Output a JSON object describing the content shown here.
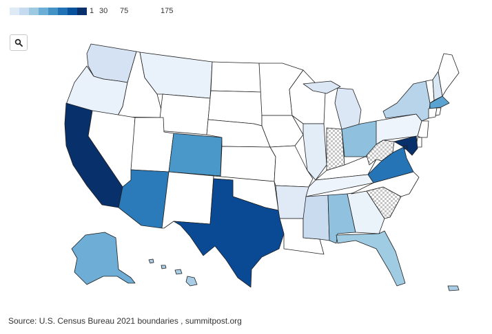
{
  "legend": {
    "ticks": [
      {
        "label": "1"
      },
      {
        "label": "30"
      },
      {
        "label": "75"
      },
      {
        "label": "175"
      }
    ],
    "colors": [
      "#deebf7",
      "#c6dbef",
      "#9ecae1",
      "#6baed6",
      "#4292c6",
      "#2171b5",
      "#08519c",
      "#08306b"
    ]
  },
  "search": {
    "icon": "search-icon"
  },
  "source": "Source: U.S. Census Bureau 2021 boundaries , summitpost.org",
  "colors": {
    "nodata": "#ffffff",
    "hatch": "#bbbbbb"
  },
  "states": {
    "WA": {
      "color": "#d4e2f3"
    },
    "OR": {
      "color": "#e9f1fa"
    },
    "CA": {
      "color": "#08306b"
    },
    "ID": {
      "color": "#ffffff"
    },
    "NV": {
      "color": "#ffffff"
    },
    "MT": {
      "color": "#e9f1fa"
    },
    "WY": {
      "color": "#ffffff"
    },
    "UT": {
      "color": "#ffffff"
    },
    "AZ": {
      "color": "#2b7bba"
    },
    "CO": {
      "color": "#4a98c9"
    },
    "NM": {
      "color": "#ffffff"
    },
    "ND": {
      "color": "#ffffff"
    },
    "SD": {
      "color": "#ffffff"
    },
    "NE": {
      "color": "#ffffff"
    },
    "KS": {
      "color": "#ffffff"
    },
    "OK": {
      "color": "#ffffff"
    },
    "TX": {
      "color": "#0a4a94"
    },
    "MN": {
      "color": "#ffffff"
    },
    "IA": {
      "color": "#ffffff"
    },
    "MO": {
      "color": "#ffffff"
    },
    "AR": {
      "color": "#dfeaf6"
    },
    "LA": {
      "color": "#ffffff"
    },
    "WI": {
      "color": "#ffffff"
    },
    "IL": {
      "color": "#e3edf8"
    },
    "MI": {
      "color": "#dbe7f5"
    },
    "IN": {
      "color": "nodata"
    },
    "OH": {
      "color": "#8fc1de"
    },
    "KY": {
      "color": "#ffffff"
    },
    "TN": {
      "color": "#eef4fb"
    },
    "MS": {
      "color": "#c9dcef"
    },
    "AL": {
      "color": "#90c2df"
    },
    "GA": {
      "color": "#eaf2fa"
    },
    "FL": {
      "color": "#9fcbe3"
    },
    "SC": {
      "color": "nodata"
    },
    "NC": {
      "color": "#ffffff"
    },
    "VA": {
      "color": "#2474b6"
    },
    "WV": {
      "color": "nodata"
    },
    "PA": {
      "color": "#eef4fb"
    },
    "NY": {
      "color": "#b8d4ea"
    },
    "VT": {
      "color": "#ffffff"
    },
    "NH": {
      "color": "#d9e6f4"
    },
    "ME": {
      "color": "#ffffff"
    },
    "MA": {
      "color": "#5aa3d1"
    },
    "CT": {
      "color": "#ffffff"
    },
    "RI": {
      "color": "#ffffff"
    },
    "NJ": {
      "color": "#ffffff"
    },
    "DE": {
      "color": "#ffffff"
    },
    "MD": {
      "color": "#08306b"
    },
    "DC": {
      "color": "#08306b"
    },
    "AK": {
      "color": "#6eaed6"
    },
    "HI": {
      "color": "#a9cde5"
    },
    "PR": {
      "color": "#a9cde5"
    }
  }
}
